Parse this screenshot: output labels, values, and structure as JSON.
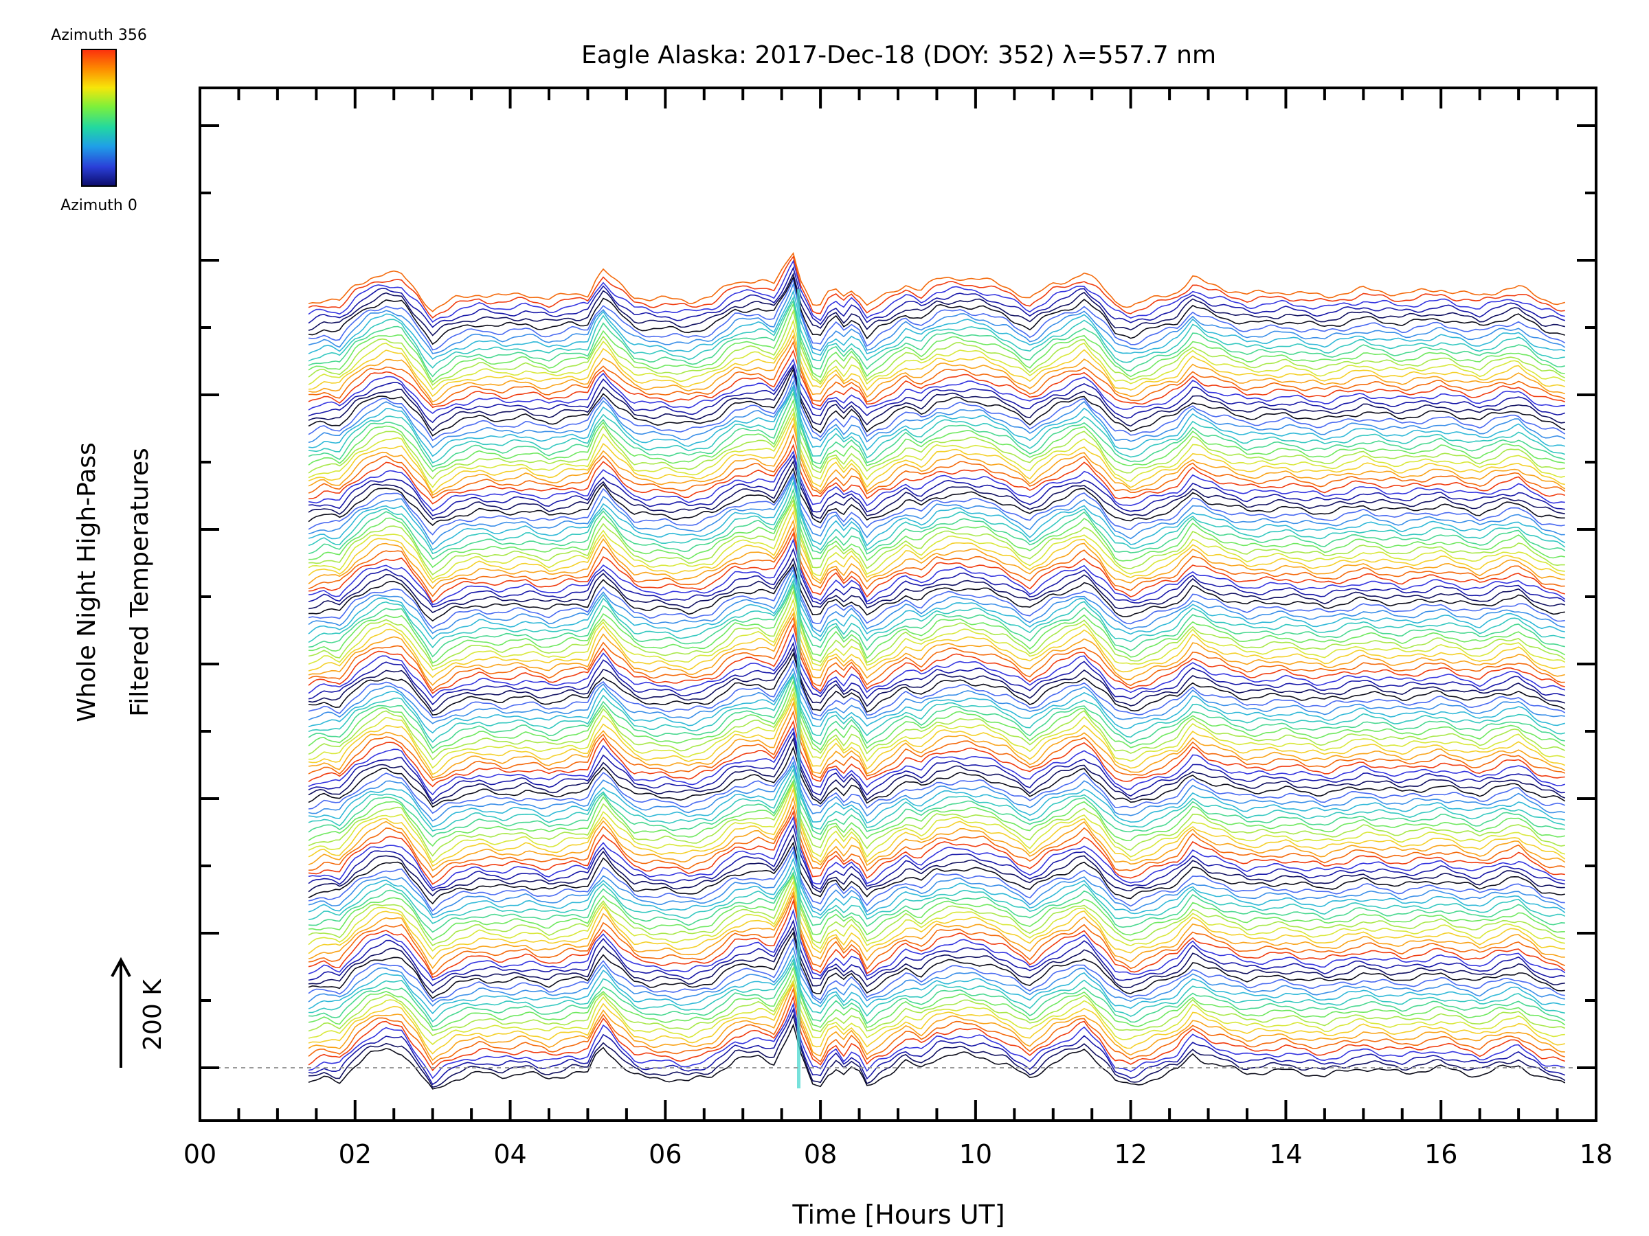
{
  "chart_data": {
    "type": "line",
    "title": "Eagle Alaska: 2017-Dec-18 (DOY: 352) λ=557.7 nm",
    "xlabel": "Time [Hours UT]",
    "ylabel": [
      "Whole Night High-Pass",
      "Filtered Temperatures"
    ],
    "xlim": [
      0,
      18
    ],
    "x_tick_labels": [
      "00",
      "02",
      "04",
      "06",
      "08",
      "10",
      "12",
      "14",
      "16",
      "18"
    ],
    "x_tick_values": [
      0,
      2,
      4,
      6,
      8,
      10,
      12,
      14,
      16,
      18
    ],
    "scale_bar": {
      "label": "200 K",
      "kelvin": 200
    },
    "colorbar": {
      "top_label": "Azimuth 356",
      "bottom_label": "Azimuth 0",
      "colors": [
        "#fb2f0d",
        "#fd8a00",
        "#f6e60a",
        "#7cf03c",
        "#22d8a0",
        "#1f9fe8",
        "#2a3fd8",
        "#0c0c6a"
      ]
    },
    "series_count": 134,
    "offset_per_series_k": 11.0,
    "time_start_h": 1.4,
    "time_end_h": 17.6,
    "series_palette": [
      "#0c0c1a",
      "#101060",
      "#1818a8",
      "#3535e0",
      "#f03c10",
      "#f46a0c",
      "#f9a31a",
      "#f4d02a",
      "#d8e83a",
      "#a8e84a",
      "#6fe860",
      "#4ad890",
      "#35c8c0",
      "#30b8d8",
      "#3a8ee8",
      "#4a6af0"
    ],
    "ref_line_k": 0,
    "profile_h": [
      1.4,
      1.6,
      1.8,
      2.0,
      2.2,
      2.4,
      2.6,
      2.8,
      3.0,
      3.1,
      3.3,
      3.6,
      3.9,
      4.2,
      4.5,
      4.8,
      5.0,
      5.1,
      5.2,
      5.4,
      5.6,
      5.8,
      6.0,
      6.3,
      6.6,
      6.9,
      7.2,
      7.4,
      7.55,
      7.65,
      7.75,
      7.9,
      8.0,
      8.1,
      8.2,
      8.3,
      8.4,
      8.5,
      8.6,
      8.75,
      8.9,
      9.1,
      9.3,
      9.5,
      9.8,
      10.1,
      10.4,
      10.7,
      11.0,
      11.2,
      11.4,
      11.6,
      11.8,
      12.0,
      12.3,
      12.6,
      12.8,
      13.0,
      13.5,
      14.0,
      14.5,
      15.0,
      15.5,
      16.0,
      16.5,
      16.8,
      17.0,
      17.3,
      17.6
    ],
    "profile_k": [
      -30,
      -20,
      -25,
      5,
      25,
      35,
      30,
      -5,
      -45,
      -35,
      -20,
      -10,
      -15,
      -10,
      -20,
      -10,
      -10,
      20,
      40,
      10,
      -15,
      -20,
      -20,
      -25,
      -15,
      15,
      20,
      10,
      50,
      80,
      20,
      -30,
      -35,
      -10,
      0,
      -15,
      0,
      -10,
      -35,
      -20,
      -10,
      10,
      0,
      20,
      25,
      20,
      5,
      -20,
      10,
      20,
      35,
      10,
      -25,
      -35,
      -20,
      -5,
      25,
      10,
      -10,
      -5,
      -15,
      0,
      -10,
      0,
      -15,
      0,
      5,
      -20,
      -30
    ],
    "spike_h": 7.72,
    "spike_series_color": "#4ad8d0",
    "units_note": "200 K"
  }
}
